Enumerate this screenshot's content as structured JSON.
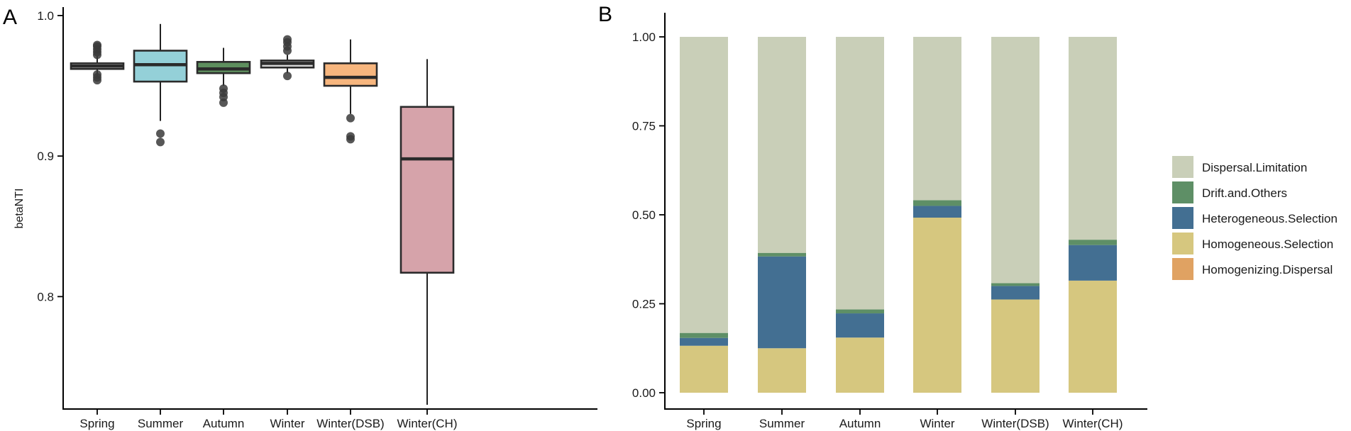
{
  "chart_data": [
    {
      "panel": "A",
      "type": "box",
      "xlabel": "",
      "ylabel": "betaNTI",
      "ylim": [
        0.72,
        1.005
      ],
      "yticks": [
        0.8,
        0.9,
        1.0
      ],
      "ytick_labels": [
        "0.8",
        "0.9",
        "1.0"
      ],
      "categories": [
        "Spring",
        "Summer",
        "Autumn",
        "Winter",
        "Winter(DSB)",
        "Winter(CH)"
      ],
      "boxes": [
        {
          "category": "Spring",
          "q1": 0.962,
          "median": 0.964,
          "q3": 0.966,
          "whisker_low": 0.957,
          "whisker_high": 0.971,
          "outliers": [
            0.954,
            0.956,
            0.958,
            0.972,
            0.974,
            0.976,
            0.978,
            0.979
          ],
          "color": "#d9d9d9"
        },
        {
          "category": "Summer",
          "q1": 0.953,
          "median": 0.965,
          "q3": 0.975,
          "whisker_low": 0.925,
          "whisker_high": 0.994,
          "outliers": [
            0.916,
            0.91
          ],
          "color": "#94d0d8"
        },
        {
          "category": "Autumn",
          "q1": 0.959,
          "median": 0.962,
          "q3": 0.967,
          "whisker_low": 0.95,
          "whisker_high": 0.977,
          "outliers": [
            0.938,
            0.942,
            0.945,
            0.948
          ],
          "color": "#5e8f5e"
        },
        {
          "category": "Winter",
          "q1": 0.963,
          "median": 0.966,
          "q3": 0.968,
          "whisker_low": 0.959,
          "whisker_high": 0.972,
          "outliers": [
            0.957,
            0.975,
            0.978,
            0.981,
            0.983
          ],
          "color": "#d9d9d9"
        },
        {
          "category": "Winter(DSB)",
          "q1": 0.95,
          "median": 0.956,
          "q3": 0.966,
          "whisker_low": 0.93,
          "whisker_high": 0.983,
          "outliers": [
            0.927,
            0.914,
            0.912
          ],
          "color": "#f7b67e"
        },
        {
          "category": "Winter(CH)",
          "q1": 0.817,
          "median": 0.898,
          "q3": 0.935,
          "whisker_low": 0.723,
          "whisker_high": 0.969,
          "outliers": [],
          "color": "#d6a3aa"
        }
      ]
    },
    {
      "panel": "B",
      "type": "stacked_bar",
      "xlabel": "",
      "ylabel": "",
      "ylim": [
        0,
        1
      ],
      "yticks": [
        0,
        0.25,
        0.5,
        0.75,
        1.0
      ],
      "ytick_labels": [
        "0.00",
        "0.25",
        "0.50",
        "0.75",
        "1.00"
      ],
      "categories": [
        "Spring",
        "Summer",
        "Autumn",
        "Winter",
        "Winter(DSB)",
        "Winter(CH)"
      ],
      "series": [
        {
          "name": "Homogenizing.Dispersal",
          "color": "#e0a262",
          "values": [
            0,
            0,
            0,
            0,
            0,
            0
          ]
        },
        {
          "name": "Homogeneous.Selection",
          "color": "#d6c77f",
          "values": [
            0.132,
            0.125,
            0.155,
            0.492,
            0.262,
            0.315
          ]
        },
        {
          "name": "Heterogeneous.Selection",
          "color": "#436f92",
          "values": [
            0.022,
            0.258,
            0.068,
            0.033,
            0.038,
            0.1
          ]
        },
        {
          "name": "Drift.and.Others",
          "color": "#5e8f66",
          "values": [
            0.014,
            0.01,
            0.011,
            0.016,
            0.008,
            0.015
          ]
        },
        {
          "name": "Dispersal.Limitation",
          "color": "#c9cfb8",
          "values": [
            0.832,
            0.607,
            0.766,
            0.459,
            0.692,
            0.57
          ]
        }
      ],
      "legend": {
        "placement": "right",
        "entries": [
          "Dispersal.Limitation",
          "Drift.and.Others",
          "Heterogeneous.Selection",
          "Homogeneous.Selection",
          "Homogenizing.Dispersal"
        ]
      }
    }
  ]
}
